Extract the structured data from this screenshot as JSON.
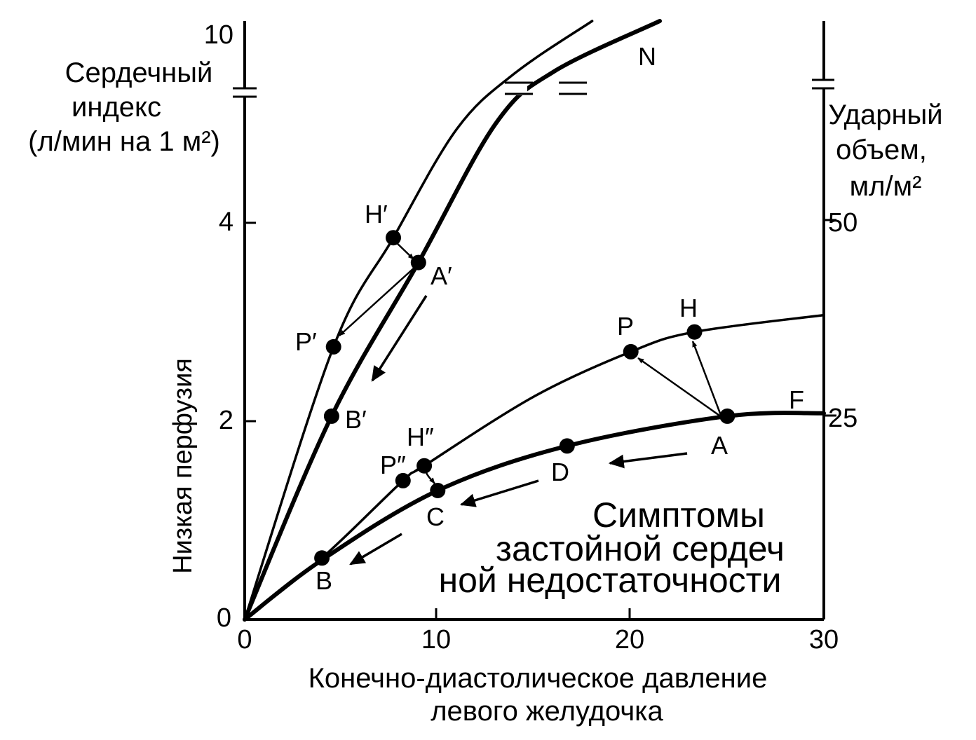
{
  "chart_data": {
    "type": "line",
    "xlabel_lines": [
      "Конечно-диастолическое давление",
      "левого желудочка"
    ],
    "ylabel_lines": [
      "Сердечный",
      "индекс",
      "(л/мин на 1 м²)"
    ],
    "ylabel_side": "Низкая перфузия",
    "y2label_lines": [
      "Ударный",
      "объем,",
      "мл/м²"
    ],
    "x_ticks": [
      "0",
      "10",
      "20",
      "30"
    ],
    "y_ticks": [
      "0",
      "2",
      "4",
      "10"
    ],
    "y2_ticks": [
      "25",
      "50"
    ],
    "xlim": [
      0,
      30
    ],
    "ylim_lower": [
      0,
      5.4
    ],
    "ylim_upper_tick": 10,
    "annotation_lines": [
      "Симптомы",
      "застойной сердеч",
      "ной недостаточности"
    ],
    "series": [
      {
        "name": "N",
        "values": [
          [
            0,
            0
          ],
          [
            4.5,
            2.05
          ],
          [
            9,
            3.6
          ],
          [
            13,
            5.0
          ],
          [
            16,
            6.3
          ],
          [
            21.5,
            10
          ]
        ]
      },
      {
        "name": "",
        "values": [
          [
            0,
            0
          ],
          [
            4.6,
            2.75
          ],
          [
            7.7,
            3.85
          ],
          [
            11,
            4.95
          ],
          [
            14,
            6.2
          ],
          [
            18,
            10
          ]
        ]
      },
      {
        "name": "F",
        "values": [
          [
            0,
            0
          ],
          [
            4,
            0.6
          ],
          [
            10,
            1.3
          ],
          [
            16.7,
            1.75
          ],
          [
            25,
            2.05
          ],
          [
            30,
            2.08
          ]
        ]
      },
      {
        "name": "",
        "values": [
          [
            0,
            0
          ],
          [
            4,
            0.62
          ],
          [
            8.2,
            1.4
          ],
          [
            9.3,
            1.55
          ],
          [
            15,
            2.25
          ],
          [
            20,
            2.7
          ],
          [
            23.3,
            2.9
          ],
          [
            30,
            3.07
          ]
        ]
      }
    ],
    "points": [
      {
        "label": "H′",
        "x": 7.7,
        "y": 3.85
      },
      {
        "label": "A′",
        "x": 9,
        "y": 3.6
      },
      {
        "label": "P′",
        "x": 4.6,
        "y": 2.75
      },
      {
        "label": "B′",
        "x": 4.5,
        "y": 2.05
      },
      {
        "label": "P",
        "x": 20,
        "y": 2.7
      },
      {
        "label": "H",
        "x": 23.3,
        "y": 2.9
      },
      {
        "label": "A",
        "x": 25,
        "y": 2.05
      },
      {
        "label": "D",
        "x": 16.7,
        "y": 1.75
      },
      {
        "label": "H″",
        "x": 9.3,
        "y": 1.55
      },
      {
        "label": "P″",
        "x": 8.2,
        "y": 1.4
      },
      {
        "label": "C",
        "x": 10,
        "y": 1.3
      },
      {
        "label": "B",
        "x": 4,
        "y": 0.62
      }
    ],
    "arrows": [
      {
        "from": "A",
        "to": "P"
      },
      {
        "from": "A",
        "to": "H"
      },
      {
        "from": "A′",
        "to": "P′"
      },
      {
        "from": "H′",
        "to": "A′"
      },
      {
        "from": "H″",
        "to": "C"
      }
    ],
    "grid": false,
    "legend": "none"
  }
}
